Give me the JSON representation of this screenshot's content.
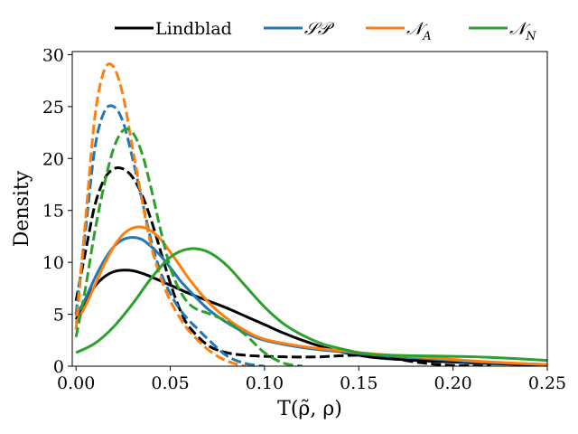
{
  "chart_data": {
    "type": "line",
    "title": "",
    "xlabel": "T(ρ̃, ρ)",
    "ylabel": "Density",
    "xlim": [
      -0.002,
      0.25
    ],
    "ylim": [
      0,
      30.3
    ],
    "xticks": [
      0.0,
      0.05,
      0.1,
      0.15,
      0.2,
      0.25
    ],
    "xtick_labels": [
      "0.00",
      "0.05",
      "0.10",
      "0.15",
      "0.20",
      "0.25"
    ],
    "yticks": [
      0,
      5,
      10,
      15,
      20,
      25,
      30
    ],
    "ytick_labels": [
      "0",
      "5",
      "10",
      "15",
      "20",
      "25",
      "30"
    ],
    "grid": false,
    "legend_position": "top-center-outside",
    "legend": [
      {
        "label": "Lindblad",
        "color": "#000000"
      },
      {
        "label": "𝒮𝒫",
        "color": "#1f77b4"
      },
      {
        "label": "𝒩",
        "sub": "A",
        "color": "#ff7f0e"
      },
      {
        "label": "𝒩",
        "sub": "N",
        "color": "#2ca02c"
      }
    ],
    "series": [
      {
        "name": "Lindblad (solid)",
        "color": "#000000",
        "dash": false,
        "x": [
          0.0,
          0.005,
          0.01,
          0.015,
          0.02,
          0.025,
          0.03,
          0.035,
          0.04,
          0.05,
          0.06,
          0.07,
          0.08,
          0.09,
          0.1,
          0.11,
          0.12,
          0.13,
          0.14,
          0.15,
          0.16,
          0.18,
          0.2,
          0.22,
          0.25
        ],
        "y": [
          4.5,
          6.3,
          7.7,
          8.6,
          9.1,
          9.25,
          9.2,
          8.95,
          8.6,
          7.8,
          7.0,
          6.3,
          5.6,
          4.8,
          4.0,
          3.2,
          2.5,
          1.9,
          1.4,
          1.05,
          0.8,
          0.55,
          0.4,
          0.25,
          0.12
        ]
      },
      {
        "name": "Lindblad (dashed)",
        "color": "#000000",
        "dash": true,
        "x": [
          0.0,
          0.005,
          0.01,
          0.015,
          0.02,
          0.025,
          0.03,
          0.035,
          0.04,
          0.045,
          0.05,
          0.055,
          0.06,
          0.07,
          0.08,
          0.09,
          0.1,
          0.11,
          0.12,
          0.13,
          0.14,
          0.15,
          0.16,
          0.17,
          0.18,
          0.19,
          0.2,
          0.21,
          0.22
        ],
        "y": [
          6.3,
          11.0,
          15.5,
          18.0,
          19.0,
          19.0,
          18.2,
          16.5,
          14.0,
          11.0,
          8.0,
          5.5,
          3.8,
          2.0,
          1.3,
          1.05,
          0.95,
          0.9,
          0.88,
          0.9,
          1.0,
          1.05,
          0.95,
          0.7,
          0.4,
          0.2,
          0.08,
          0.03,
          0.0
        ]
      },
      {
        "name": "SP (solid)",
        "color": "#1f77b4",
        "dash": false,
        "x": [
          0.0,
          0.005,
          0.01,
          0.015,
          0.02,
          0.025,
          0.03,
          0.035,
          0.04,
          0.045,
          0.05,
          0.055,
          0.06,
          0.07,
          0.08,
          0.09,
          0.1,
          0.12,
          0.14,
          0.16,
          0.18,
          0.2,
          0.22,
          0.25
        ],
        "y": [
          4.8,
          6.5,
          8.5,
          10.2,
          11.5,
          12.2,
          12.4,
          12.2,
          11.5,
          10.6,
          9.5,
          8.3,
          7.3,
          5.5,
          4.2,
          3.2,
          2.5,
          1.8,
          1.4,
          1.05,
          0.8,
          0.55,
          0.35,
          0.15
        ]
      },
      {
        "name": "SP (dashed)",
        "color": "#1f77b4",
        "dash": true,
        "x": [
          0.0,
          0.005,
          0.01,
          0.015,
          0.02,
          0.025,
          0.03,
          0.035,
          0.04,
          0.045,
          0.05,
          0.055,
          0.06,
          0.065,
          0.07,
          0.08,
          0.09,
          0.1
        ],
        "y": [
          5.0,
          13.0,
          21.0,
          24.5,
          25.0,
          23.5,
          20.0,
          16.0,
          12.0,
          9.0,
          7.0,
          5.5,
          4.4,
          3.5,
          2.6,
          1.0,
          0.25,
          0.0
        ]
      },
      {
        "name": "N_A (solid)",
        "color": "#ff7f0e",
        "dash": false,
        "x": [
          0.0,
          0.005,
          0.01,
          0.015,
          0.02,
          0.025,
          0.03,
          0.035,
          0.04,
          0.045,
          0.05,
          0.055,
          0.06,
          0.07,
          0.08,
          0.09,
          0.1,
          0.12,
          0.14,
          0.16,
          0.18,
          0.2,
          0.22,
          0.25
        ],
        "y": [
          4.2,
          5.8,
          7.8,
          9.8,
          11.5,
          12.7,
          13.3,
          13.4,
          13.0,
          12.2,
          11.0,
          9.7,
          8.4,
          6.2,
          4.6,
          3.4,
          2.6,
          1.9,
          1.5,
          1.15,
          0.9,
          0.65,
          0.4,
          0.15
        ]
      },
      {
        "name": "N_A (dashed)",
        "color": "#ff7f0e",
        "dash": true,
        "x": [
          0.0,
          0.005,
          0.01,
          0.015,
          0.02,
          0.025,
          0.03,
          0.035,
          0.04,
          0.045,
          0.05,
          0.055,
          0.06,
          0.07,
          0.08,
          0.09
        ],
        "y": [
          3.5,
          14.0,
          24.0,
          28.5,
          28.8,
          26.0,
          21.0,
          16.0,
          11.5,
          8.5,
          6.3,
          4.7,
          3.4,
          1.6,
          0.5,
          0.0
        ]
      },
      {
        "name": "N_N (solid)",
        "color": "#2ca02c",
        "dash": false,
        "x": [
          0.0,
          0.01,
          0.02,
          0.03,
          0.04,
          0.05,
          0.06,
          0.07,
          0.08,
          0.09,
          0.1,
          0.11,
          0.12,
          0.13,
          0.14,
          0.15,
          0.16,
          0.18,
          0.2,
          0.22,
          0.25
        ],
        "y": [
          1.3,
          2.2,
          3.8,
          6.0,
          8.5,
          10.5,
          11.3,
          11.0,
          9.7,
          7.7,
          5.7,
          4.1,
          3.0,
          2.2,
          1.7,
          1.3,
          1.1,
          1.0,
          0.95,
          0.85,
          0.55
        ]
      },
      {
        "name": "N_N (dashed)",
        "color": "#2ca02c",
        "dash": true,
        "x": [
          0.0,
          0.005,
          0.01,
          0.015,
          0.02,
          0.025,
          0.03,
          0.035,
          0.04,
          0.045,
          0.05,
          0.055,
          0.06,
          0.065,
          0.07,
          0.08,
          0.09,
          0.1,
          0.11,
          0.12
        ],
        "y": [
          2.8,
          7.5,
          13.0,
          17.5,
          21.0,
          22.7,
          22.5,
          20.5,
          17.0,
          13.0,
          9.5,
          7.3,
          6.0,
          5.4,
          5.1,
          4.3,
          3.0,
          1.3,
          0.3,
          0.0
        ]
      }
    ]
  }
}
